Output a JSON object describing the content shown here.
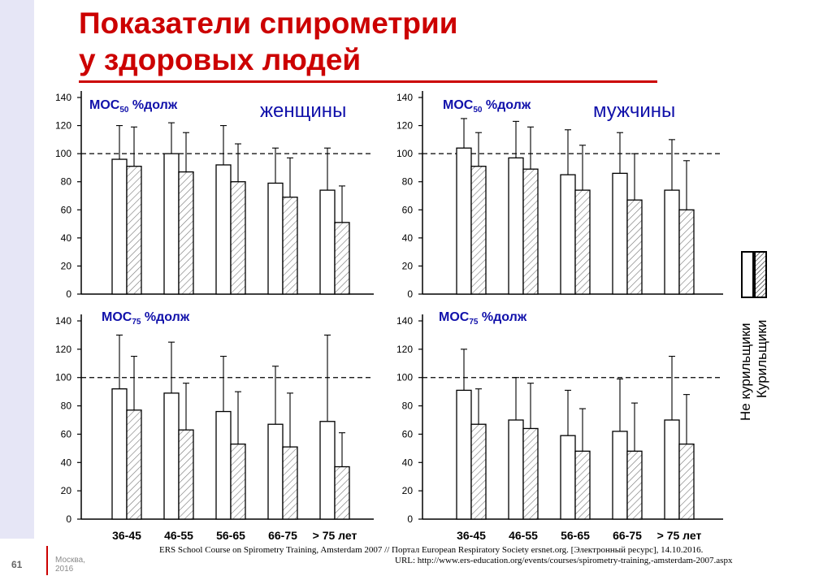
{
  "slide": {
    "title_line1": "Показатели спирометрии",
    "title_line2": "у здоровых людей",
    "number": "61",
    "city": "Москва,",
    "year": "2016",
    "source_line1": "ERS School Course on Spirometry Training, Amsterdam 2007 // Портал European Respiratory Society ersnet.org. [Электронный ресурс], 14.10.2016.",
    "source_line2": "URL: http://www.ers-education.org/events/courses/spirometry-training,-amsterdam-2007.aspx"
  },
  "legend": {
    "nonsmokers": "Не курильщики",
    "smokers": "Курильщики"
  },
  "colors": {
    "title": "#cc0000",
    "label_blue": "#1010aa",
    "bar_stroke": "#000000",
    "hatch": "#777777"
  },
  "chart_data": [
    {
      "type": "bar",
      "panel": "top-left",
      "ylabel_main": "МОС",
      "ylabel_sub": "50",
      "ylabel_rest": " %долж",
      "group_label": "женщины",
      "categories": [
        "36-45",
        "46-55",
        "56-65",
        "66-75",
        "> 75 лет"
      ],
      "ylim": [
        0,
        140
      ],
      "yticks": [
        "0",
        "20",
        "40",
        "60",
        "80",
        "100",
        "120",
        "140"
      ],
      "reference_line": 100,
      "series": [
        {
          "key": "nonsmokers",
          "values": [
            96,
            100,
            92,
            79,
            74
          ],
          "err_upper": [
            120,
            122,
            120,
            104,
            104
          ]
        },
        {
          "key": "smokers",
          "values": [
            91,
            87,
            80,
            69,
            51
          ],
          "err_upper": [
            119,
            115,
            107,
            97,
            77
          ]
        }
      ]
    },
    {
      "type": "bar",
      "panel": "top-right",
      "ylabel_main": "МОС",
      "ylabel_sub": "50",
      "ylabel_rest": " %долж",
      "group_label": "мужчины",
      "categories": [
        "36-45",
        "46-55",
        "56-65",
        "66-75",
        "> 75 лет"
      ],
      "ylim": [
        0,
        140
      ],
      "yticks": [
        "0",
        "20",
        "40",
        "60",
        "80",
        "100",
        "120",
        "140"
      ],
      "reference_line": 100,
      "series": [
        {
          "key": "nonsmokers",
          "values": [
            104,
            97,
            85,
            86,
            74
          ],
          "err_upper": [
            125,
            123,
            117,
            115,
            110
          ]
        },
        {
          "key": "smokers",
          "values": [
            91,
            89,
            74,
            67,
            60
          ],
          "err_upper": [
            115,
            119,
            106,
            100,
            95
          ]
        }
      ]
    },
    {
      "type": "bar",
      "panel": "bottom-left",
      "ylabel_main": "МОС",
      "ylabel_sub": "75",
      "ylabel_rest": " %долж",
      "group_label": "",
      "categories": [
        "36-45",
        "46-55",
        "56-65",
        "66-75",
        "> 75 лет"
      ],
      "ylim": [
        0,
        140
      ],
      "yticks": [
        "0",
        "20",
        "40",
        "60",
        "80",
        "100",
        "120",
        "140"
      ],
      "reference_line": 100,
      "series": [
        {
          "key": "nonsmokers",
          "values": [
            92,
            89,
            76,
            67,
            69
          ],
          "err_upper": [
            130,
            125,
            115,
            108,
            130
          ]
        },
        {
          "key": "smokers",
          "values": [
            77,
            63,
            53,
            51,
            37
          ],
          "err_upper": [
            115,
            96,
            90,
            89,
            61
          ]
        }
      ]
    },
    {
      "type": "bar",
      "panel": "bottom-right",
      "ylabel_main": "МОС",
      "ylabel_sub": "75",
      "ylabel_rest": " %долж",
      "group_label": "",
      "categories": [
        "36-45",
        "46-55",
        "56-65",
        "66-75",
        "> 75 лет"
      ],
      "ylim": [
        0,
        140
      ],
      "yticks": [
        "0",
        "20",
        "40",
        "60",
        "80",
        "100",
        "120",
        "140"
      ],
      "reference_line": 100,
      "series": [
        {
          "key": "nonsmokers",
          "values": [
            91,
            70,
            59,
            62,
            70
          ],
          "err_upper": [
            120,
            100,
            91,
            99,
            115
          ]
        },
        {
          "key": "smokers",
          "values": [
            67,
            64,
            48,
            48,
            53
          ],
          "err_upper": [
            92,
            96,
            78,
            82,
            88
          ]
        }
      ]
    }
  ]
}
